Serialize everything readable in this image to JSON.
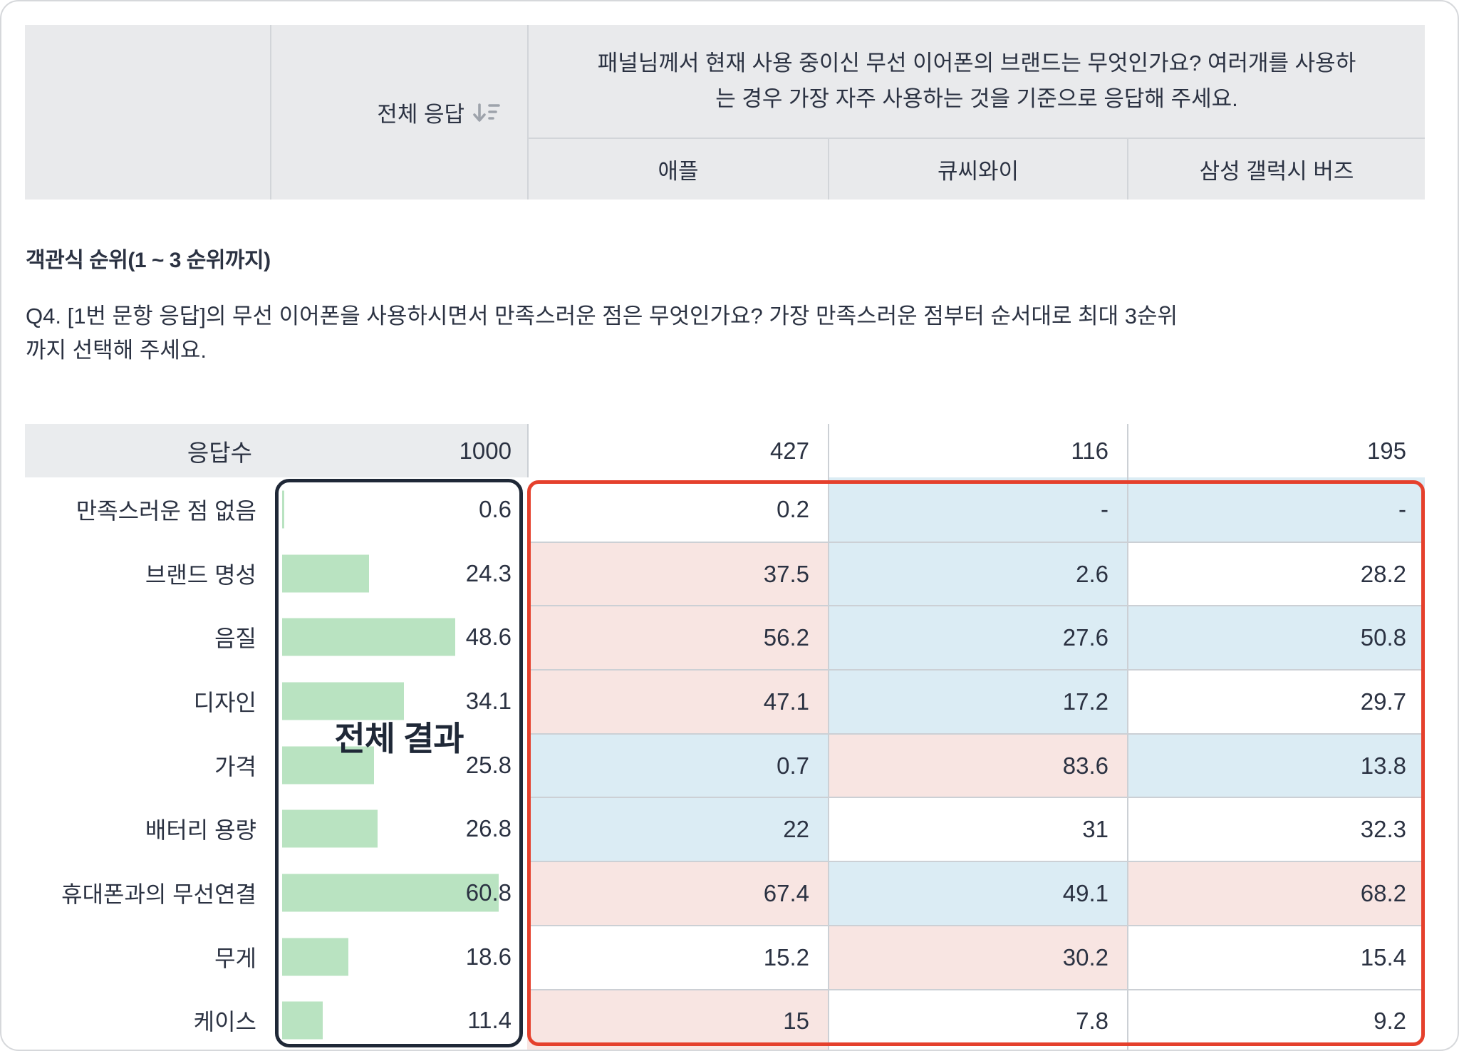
{
  "header_table": {
    "total_col_label": "전체 응답",
    "sort_icon": "sort-descending-icon",
    "question_lines": [
      "패널님께서 현재 사용 중이신 무선 이어폰의 브랜드는 무엇인가요? 여러개를 사용하",
      "는 경우 가장 자주 사용하는 것을 기준으로 응답해 주세요."
    ],
    "brands": [
      "애플",
      "큐씨와이",
      "삼성 갤럭시 버즈"
    ]
  },
  "section": {
    "title": "객관식 순위(1 ~ 3 순위까지)",
    "question_lines": [
      "Q4. [1번 문항 응답]의 무선 이어폰을 사용하시면서 만족스러운 점은 무엇인가요? 가장 만족스러운 점부터 순서대로 최대 3순위",
      "까지 선택해 주세요."
    ]
  },
  "overlay": {
    "total_result_label": "전체 결과"
  },
  "table": {
    "count_row": {
      "label": "응답수",
      "total": "1000",
      "values": [
        "427",
        "116",
        "195"
      ]
    },
    "rows": [
      {
        "label": "만족스러운 점 없음",
        "total": "0.6",
        "cells": [
          {
            "v": "0.2",
            "bg": "white"
          },
          {
            "v": "-",
            "bg": "blue"
          },
          {
            "v": "-",
            "bg": "blue"
          }
        ]
      },
      {
        "label": "브랜드 명성",
        "total": "24.3",
        "cells": [
          {
            "v": "37.5",
            "bg": "pink"
          },
          {
            "v": "2.6",
            "bg": "blue"
          },
          {
            "v": "28.2",
            "bg": "white"
          }
        ]
      },
      {
        "label": "음질",
        "total": "48.6",
        "cells": [
          {
            "v": "56.2",
            "bg": "pink"
          },
          {
            "v": "27.6",
            "bg": "blue"
          },
          {
            "v": "50.8",
            "bg": "blue"
          }
        ]
      },
      {
        "label": "디자인",
        "total": "34.1",
        "cells": [
          {
            "v": "47.1",
            "bg": "pink"
          },
          {
            "v": "17.2",
            "bg": "blue"
          },
          {
            "v": "29.7",
            "bg": "white"
          }
        ]
      },
      {
        "label": "가격",
        "total": "25.8",
        "cells": [
          {
            "v": "0.7",
            "bg": "blue"
          },
          {
            "v": "83.6",
            "bg": "pink"
          },
          {
            "v": "13.8",
            "bg": "blue"
          }
        ]
      },
      {
        "label": "배터리 용량",
        "total": "26.8",
        "cells": [
          {
            "v": "22",
            "bg": "blue"
          },
          {
            "v": "31",
            "bg": "white"
          },
          {
            "v": "32.3",
            "bg": "white"
          }
        ]
      },
      {
        "label": "휴대폰과의 무선연결",
        "total": "60.8",
        "cells": [
          {
            "v": "67.4",
            "bg": "pink"
          },
          {
            "v": "49.1",
            "bg": "blue"
          },
          {
            "v": "68.2",
            "bg": "pink"
          }
        ]
      },
      {
        "label": "무게",
        "total": "18.6",
        "cells": [
          {
            "v": "15.2",
            "bg": "white"
          },
          {
            "v": "30.2",
            "bg": "pink"
          },
          {
            "v": "15.4",
            "bg": "white"
          }
        ]
      },
      {
        "label": "케이스",
        "total": "11.4",
        "cells": [
          {
            "v": "15",
            "bg": "pink"
          },
          {
            "v": "7.8",
            "bg": "white"
          },
          {
            "v": "9.2",
            "bg": "white"
          }
        ]
      }
    ]
  },
  "chart_data": {
    "type": "bar",
    "orientation": "horizontal",
    "title": "전체 결과",
    "categories": [
      "만족스러운 점 없음",
      "브랜드 명성",
      "음질",
      "디자인",
      "가격",
      "배터리 용량",
      "휴대폰과의 무선연결",
      "무게",
      "케이스"
    ],
    "series": [
      {
        "name": "전체 응답",
        "count": 1000,
        "values": [
          0.6,
          24.3,
          48.6,
          34.1,
          25.8,
          26.8,
          60.8,
          18.6,
          11.4
        ]
      },
      {
        "name": "애플",
        "count": 427,
        "values": [
          0.2,
          37.5,
          56.2,
          47.1,
          0.7,
          22,
          67.4,
          15.2,
          15
        ]
      },
      {
        "name": "큐씨와이",
        "count": 116,
        "values": [
          null,
          2.6,
          27.6,
          17.2,
          83.6,
          31,
          49.1,
          30.2,
          7.8
        ]
      },
      {
        "name": "삼성 갤럭시 버즈",
        "count": 195,
        "values": [
          null,
          28.2,
          50.8,
          29.7,
          13.8,
          32.3,
          68.2,
          15.4,
          9.2
        ]
      }
    ],
    "xlim": [
      0,
      70
    ],
    "bar_color": "#b9e3c1",
    "legend_position": "none",
    "grid": false
  },
  "colors": {
    "highlight_high": "#f8e5e2",
    "highlight_low": "#dbecf4",
    "bar_green": "#b9e3c1",
    "header_gray": "#e9eaec",
    "red_box_border": "#e5402c",
    "dark_box_border": "#1f2837",
    "text": "#2b3242"
  }
}
